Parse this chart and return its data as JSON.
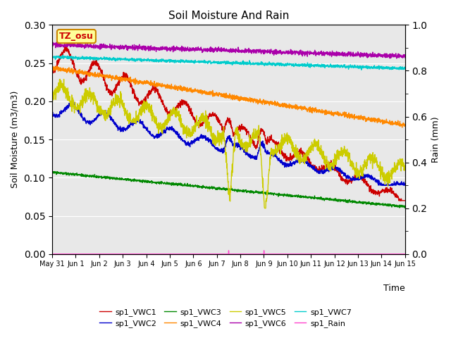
{
  "title": "Soil Moisture And Rain",
  "xlabel": "Time",
  "ylabel_left": "Soil Moisture (m3/m3)",
  "ylabel_right": "Rain (mm)",
  "ylim_left": [
    0.0,
    0.3
  ],
  "ylim_right": [
    0.0,
    1.0
  ],
  "yticks_left": [
    0.0,
    0.05,
    0.1,
    0.15,
    0.2,
    0.25,
    0.3
  ],
  "yticks_right": [
    0.0,
    0.2,
    0.4,
    0.6,
    0.8,
    1.0
  ],
  "annotation_text": "TZ_osu",
  "annotation_bg": "#ffff99",
  "annotation_edge": "#cc8800",
  "background_color": "#e8e8e8",
  "grid_color": "#ffffff",
  "legend_entries": [
    {
      "label": "sp1_VWC1",
      "color": "#cc0000"
    },
    {
      "label": "sp1_VWC2",
      "color": "#0000cc"
    },
    {
      "label": "sp1_VWC3",
      "color": "#008800"
    },
    {
      "label": "sp1_VWC4",
      "color": "#ff8800"
    },
    {
      "label": "sp1_VWC5",
      "color": "#cccc00"
    },
    {
      "label": "sp1_VWC6",
      "color": "#aa00aa"
    },
    {
      "label": "sp1_VWC7",
      "color": "#00cccc"
    },
    {
      "label": "sp1_Rain",
      "color": "#ff44cc"
    }
  ],
  "xtick_labels": [
    "May 31",
    "Jun 1",
    "Jun 2",
    "Jun 3",
    "Jun 4",
    "Jun 5",
    "Jun 6",
    "Jun 7",
    "Jun 8",
    "Jun 9",
    "Jun 10",
    "Jun 11",
    "Jun 12",
    "Jun 13",
    "Jun 14",
    "Jun 15"
  ],
  "xtick_positions": [
    0,
    1,
    2,
    3,
    4,
    5,
    6,
    7,
    8,
    9,
    10,
    11,
    12,
    13,
    14,
    15
  ]
}
